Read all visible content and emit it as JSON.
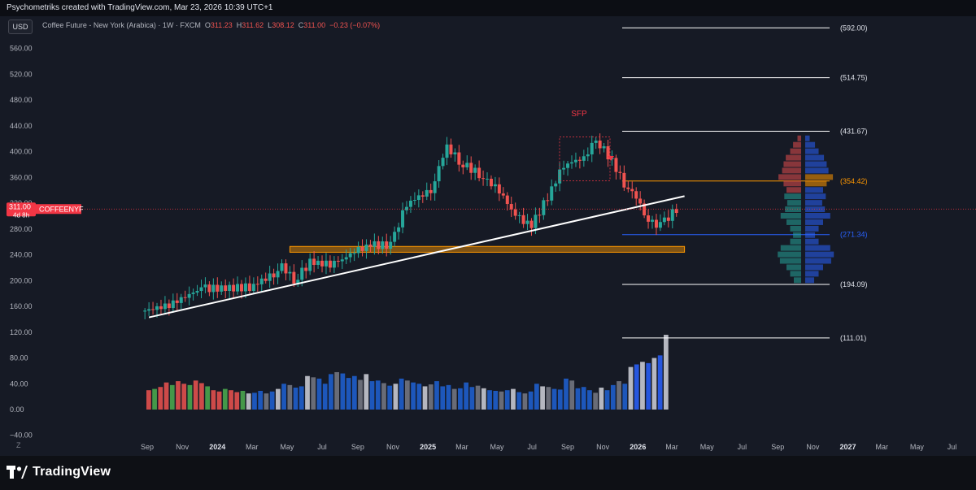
{
  "attribution": "Psychometriks created with TradingView.com, Mar 23, 2026 10:39 UTC+1",
  "currency_button": "USD",
  "legend": {
    "symbol": "Coffee Future - New York (Arabica) · 1W · FXCM",
    "o_label": "O",
    "o_value": "311.23",
    "h_label": "H",
    "h_value": "311.62",
    "l_label": "L",
    "l_value": "308.12",
    "c_label": "C",
    "c_value": "311.00",
    "change": "−0.23 (−0.07%)"
  },
  "brand": "TradingView",
  "chart_data": {
    "type": "candlestick",
    "symbol": "Coffee Future - New York (Arabica)",
    "interval": "1W",
    "source": "FXCM",
    "last_price": {
      "value": 311.0,
      "label": "311.00",
      "ticker": "COFFEENYF",
      "countdown": "4d 8h",
      "color": "#f23645"
    },
    "y_axis": {
      "ticks": [
        560,
        520,
        480,
        440,
        400,
        360,
        320,
        280,
        240,
        200,
        160,
        120,
        80,
        40,
        0,
        -40
      ],
      "tick_labels": [
        "560.00",
        "520.00",
        "480.00",
        "440.00",
        "400.00",
        "360.00",
        "320.00",
        "280.00",
        "240.00",
        "200.00",
        "160.00",
        "120.00",
        "80.00",
        "40.00",
        "0.00",
        "−40.00"
      ],
      "range": [
        -40,
        570
      ]
    },
    "x_axis": {
      "ticks": [
        {
          "label": "Sep",
          "date": "2023-09"
        },
        {
          "label": "Nov",
          "date": "2023-11"
        },
        {
          "label": "2024",
          "date": "2024-01",
          "bold": true
        },
        {
          "label": "Mar",
          "date": "2024-03"
        },
        {
          "label": "May",
          "date": "2024-05"
        },
        {
          "label": "Jul",
          "date": "2024-07"
        },
        {
          "label": "Sep",
          "date": "2024-09"
        },
        {
          "label": "Nov",
          "date": "2024-11"
        },
        {
          "label": "2025",
          "date": "2025-01",
          "bold": true
        },
        {
          "label": "Mar",
          "date": "2025-03"
        },
        {
          "label": "May",
          "date": "2025-05"
        },
        {
          "label": "Jul",
          "date": "2025-07"
        },
        {
          "label": "Sep",
          "date": "2025-09"
        },
        {
          "label": "Nov",
          "date": "2025-11"
        },
        {
          "label": "2026",
          "date": "2026-01",
          "bold": true
        },
        {
          "label": "Mar",
          "date": "2026-03"
        },
        {
          "label": "May",
          "date": "2026-05"
        },
        {
          "label": "Jul",
          "date": "2026-07"
        },
        {
          "label": "Sep",
          "date": "2026-09"
        },
        {
          "label": "Nov",
          "date": "2026-11"
        },
        {
          "label": "2027",
          "date": "2027-01",
          "bold": true
        },
        {
          "label": "Mar",
          "date": "2027-03"
        },
        {
          "label": "May",
          "date": "2027-05"
        },
        {
          "label": "Jul",
          "date": "2027-07"
        },
        {
          "label": "Sep",
          "date": "2027-09"
        }
      ]
    },
    "price_path": [
      {
        "date": "2023-08-28",
        "close": 152
      },
      {
        "date": "2023-10-16",
        "close": 162
      },
      {
        "date": "2023-12-11",
        "close": 188
      },
      {
        "date": "2024-01-22",
        "close": 188
      },
      {
        "date": "2024-03-04",
        "close": 190
      },
      {
        "date": "2024-04-15",
        "close": 210
      },
      {
        "date": "2024-04-29",
        "close": 225
      },
      {
        "date": "2024-05-20",
        "close": 200
      },
      {
        "date": "2024-06-17",
        "close": 228
      },
      {
        "date": "2024-07-29",
        "close": 225
      },
      {
        "date": "2024-09-02",
        "close": 245
      },
      {
        "date": "2024-09-30",
        "close": 255
      },
      {
        "date": "2024-11-04",
        "close": 255
      },
      {
        "date": "2024-12-02",
        "close": 320
      },
      {
        "date": "2025-01-13",
        "close": 340
      },
      {
        "date": "2025-02-10",
        "close": 410
      },
      {
        "date": "2025-03-03",
        "close": 385
      },
      {
        "date": "2025-04-07",
        "close": 365
      },
      {
        "date": "2025-05-12",
        "close": 340
      },
      {
        "date": "2025-06-09",
        "close": 300
      },
      {
        "date": "2025-07-07",
        "close": 285
      },
      {
        "date": "2025-08-04",
        "close": 330
      },
      {
        "date": "2025-09-01",
        "close": 380
      },
      {
        "date": "2025-10-06",
        "close": 390
      },
      {
        "date": "2025-10-27",
        "close": 420
      },
      {
        "date": "2025-11-24",
        "close": 385
      },
      {
        "date": "2025-12-15",
        "close": 350
      },
      {
        "date": "2026-01-05",
        "close": 330
      },
      {
        "date": "2026-01-26",
        "close": 290
      },
      {
        "date": "2026-02-16",
        "close": 286
      },
      {
        "date": "2026-03-16",
        "close": 311
      }
    ],
    "volume": [
      30,
      32,
      35,
      42,
      38,
      44,
      40,
      38,
      45,
      41,
      36,
      30,
      28,
      32,
      30,
      27,
      29,
      25,
      26,
      29,
      25,
      28,
      32,
      40,
      38,
      34,
      36,
      52,
      50,
      48,
      40,
      55,
      58,
      56,
      49,
      52,
      46,
      55,
      44,
      45,
      41,
      37,
      40,
      48,
      45,
      42,
      40,
      36,
      39,
      44,
      36,
      38,
      32,
      33,
      42,
      35,
      37,
      33,
      30,
      29,
      28,
      30,
      32,
      27,
      25,
      28,
      40,
      36,
      35,
      32,
      31,
      48,
      45,
      33,
      35,
      30,
      26,
      34,
      30,
      38,
      44,
      40,
      66,
      70,
      74,
      72,
      80,
      84,
      116
    ],
    "annotations": {
      "horizontal_levels": [
        {
          "value": 592.0,
          "label": "(592.00)",
          "color": "#ffffff"
        },
        {
          "value": 514.75,
          "label": "(514.75)",
          "color": "#ffffff"
        },
        {
          "value": 431.67,
          "label": "(431.67)",
          "color": "#ffffff"
        },
        {
          "value": 354.42,
          "label": "(354.42)",
          "color": "#ff9800"
        },
        {
          "value": 271.34,
          "label": "(271.34)",
          "color": "#2962ff"
        },
        {
          "value": 194.09,
          "label": "(194.09)",
          "color": "#ffffff"
        },
        {
          "value": 111.01,
          "label": "(111.01)",
          "color": "#ffffff"
        }
      ],
      "trendline": {
        "from": {
          "date": "2023-09-04",
          "value": 143
        },
        "to": {
          "date": "2026-03-23",
          "value": 331
        },
        "color": "#ffffff"
      },
      "zone": {
        "from": "2024-05-06",
        "to": "2026-03-23",
        "low": 244,
        "high": 253,
        "color": "#ff9800"
      },
      "sfp": {
        "label": "SFP",
        "value": 423,
        "color": "#f23645"
      }
    },
    "grid": false,
    "legend_position": "top-left"
  }
}
